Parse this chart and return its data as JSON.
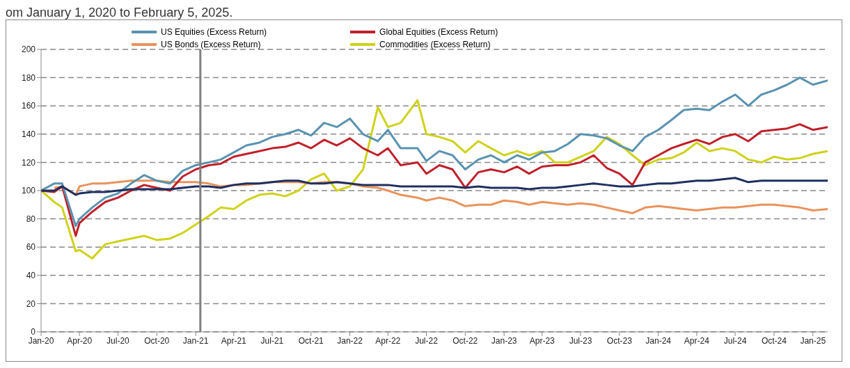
{
  "chart_data": {
    "type": "line",
    "annotations": [
      "om January 1, 2020 to February 5, 2025."
    ],
    "x": [
      "2020-01-01",
      "2020-02-01",
      "2020-02-20",
      "2020-03-23",
      "2020-04-01",
      "2020-05-01",
      "2020-06-01",
      "2020-07-01",
      "2020-08-01",
      "2020-09-01",
      "2020-10-01",
      "2020-11-01",
      "2020-12-01",
      "2021-01-01",
      "2021-02-01",
      "2021-03-01",
      "2021-04-01",
      "2021-05-01",
      "2021-06-01",
      "2021-07-01",
      "2021-08-01",
      "2021-09-01",
      "2021-10-01",
      "2021-11-01",
      "2021-12-01",
      "2022-01-01",
      "2022-02-01",
      "2022-03-08",
      "2022-04-01",
      "2022-05-01",
      "2022-06-10",
      "2022-07-01",
      "2022-08-01",
      "2022-09-01",
      "2022-10-01",
      "2022-11-01",
      "2022-12-01",
      "2023-01-01",
      "2023-02-01",
      "2023-03-01",
      "2023-04-01",
      "2023-05-01",
      "2023-06-01",
      "2023-07-01",
      "2023-08-01",
      "2023-09-01",
      "2023-10-01",
      "2023-11-01",
      "2023-12-01",
      "2024-01-01",
      "2024-02-01",
      "2024-03-01",
      "2024-04-01",
      "2024-05-01",
      "2024-06-01",
      "2024-07-01",
      "2024-08-01",
      "2024-09-01",
      "2024-10-01",
      "2024-11-01",
      "2024-12-01",
      "2025-01-01",
      "2025-02-05"
    ],
    "series": [
      {
        "color": "#1f2f5f",
        "values": [
          100,
          100,
          103,
          97,
          98,
          99,
          99,
          100,
          101,
          101,
          101,
          101,
          102,
          103,
          103,
          102,
          104,
          105,
          105,
          106,
          107,
          107,
          105,
          105,
          106,
          105,
          104,
          104,
          104,
          103,
          103,
          103,
          103,
          103,
          102,
          103,
          102,
          102,
          102,
          101,
          102,
          102,
          103,
          104,
          105,
          104,
          103,
          103,
          104,
          105,
          105,
          106,
          107,
          107,
          108,
          109,
          106,
          107,
          107,
          107,
          107,
          107,
          107
        ]
      },
      {
        "name": "US Equities (Excess Return)",
        "color": "#5a93b0",
        "values": [
          100,
          105,
          105,
          75,
          80,
          88,
          95,
          98,
          105,
          111,
          107,
          105,
          114,
          118,
          120,
          122,
          127,
          132,
          134,
          138,
          140,
          143,
          139,
          148,
          145,
          151,
          140,
          135,
          143,
          130,
          130,
          121,
          128,
          125,
          115,
          122,
          125,
          120,
          125,
          122,
          127,
          128,
          133,
          140,
          139,
          137,
          132,
          128,
          138,
          143,
          150,
          157,
          158,
          157,
          163,
          168,
          160,
          168,
          171,
          175,
          180,
          175,
          178
        ]
      },
      {
        "name": "Global Equities (Excess Return)",
        "color": "#c0202a",
        "values": [
          100,
          99,
          103,
          68,
          77,
          85,
          92,
          95,
          100,
          104,
          102,
          100,
          110,
          115,
          118,
          119,
          124,
          126,
          128,
          130,
          131,
          134,
          130,
          136,
          132,
          137,
          130,
          125,
          130,
          118,
          120,
          112,
          118,
          115,
          102,
          113,
          115,
          113,
          117,
          112,
          117,
          118,
          118,
          120,
          125,
          116,
          112,
          104,
          120,
          125,
          130,
          133,
          136,
          133,
          138,
          140,
          135,
          142,
          143,
          144,
          147,
          143,
          145
        ]
      },
      {
        "name": "US Bonds (Excess Return)",
        "color": "#e8935c",
        "values": [
          null,
          102,
          103,
          97,
          103,
          105,
          105,
          106,
          107,
          107,
          107,
          106,
          106,
          106,
          105,
          103,
          104,
          104,
          105,
          106,
          106,
          106,
          105,
          106,
          106,
          105,
          103,
          102,
          100,
          97,
          95,
          93,
          95,
          93,
          89,
          90,
          90,
          93,
          92,
          90,
          92,
          91,
          90,
          91,
          90,
          88,
          86,
          84,
          88,
          89,
          88,
          87,
          86,
          87,
          88,
          88,
          89,
          90,
          90,
          89,
          88,
          86,
          87
        ]
      },
      {
        "name": "Commodities (Excess Return)",
        "color": "#cfd21a",
        "values": [
          100,
          92,
          88,
          57,
          58,
          52,
          62,
          64,
          66,
          68,
          65,
          66,
          70,
          76,
          82,
          88,
          87,
          93,
          97,
          98,
          96,
          100,
          108,
          112,
          100,
          103,
          115,
          159,
          145,
          148,
          164,
          140,
          138,
          135,
          127,
          135,
          130,
          125,
          128,
          125,
          128,
          120,
          120,
          124,
          128,
          138,
          133,
          125,
          118,
          122,
          123,
          127,
          134,
          128,
          130,
          128,
          122,
          120,
          124,
          122,
          123,
          126,
          128
        ]
      }
    ],
    "xlim": [
      "2020-01-01",
      "2025-02-05"
    ],
    "xticks": [
      {
        "value": "2020-01-01",
        "label": "Jan-20"
      },
      {
        "value": "2020-04-01",
        "label": "Apr-20"
      },
      {
        "value": "2020-07-01",
        "label": "Jul-20"
      },
      {
        "value": "2020-10-01",
        "label": "Oct-20"
      },
      {
        "value": "2021-01-01",
        "label": "Jan-21"
      },
      {
        "value": "2021-04-01",
        "label": "Apr-21"
      },
      {
        "value": "2021-07-01",
        "label": "Jul-21"
      },
      {
        "value": "2021-10-01",
        "label": "Oct-21"
      },
      {
        "value": "2022-01-01",
        "label": "Jan-22"
      },
      {
        "value": "2022-04-01",
        "label": "Apr-22"
      },
      {
        "value": "2022-07-01",
        "label": "Jul-22"
      },
      {
        "value": "2022-10-01",
        "label": "Oct-22"
      },
      {
        "value": "2023-01-01",
        "label": "Jan-23"
      },
      {
        "value": "2023-04-01",
        "label": "Apr-23"
      },
      {
        "value": "2023-07-01",
        "label": "Jul-23"
      },
      {
        "value": "2023-10-01",
        "label": "Oct-23"
      },
      {
        "value": "2024-01-01",
        "label": "Jan-24"
      },
      {
        "value": "2024-04-01",
        "label": "Apr-24"
      },
      {
        "value": "2024-07-01",
        "label": "Jul-24"
      },
      {
        "value": "2024-10-01",
        "label": "Oct-24"
      },
      {
        "value": "2025-01-01",
        "label": "Jan-25"
      }
    ],
    "ylim": [
      0,
      200
    ],
    "yticks": [
      0,
      20,
      40,
      60,
      80,
      100,
      120,
      140,
      160,
      180,
      200
    ],
    "ref_lines": [
      {
        "axis": "x",
        "value": "2021-01-12",
        "color": "#808080"
      }
    ],
    "grid": "y",
    "legend": "top",
    "marker": "none",
    "line_style": "solid"
  }
}
